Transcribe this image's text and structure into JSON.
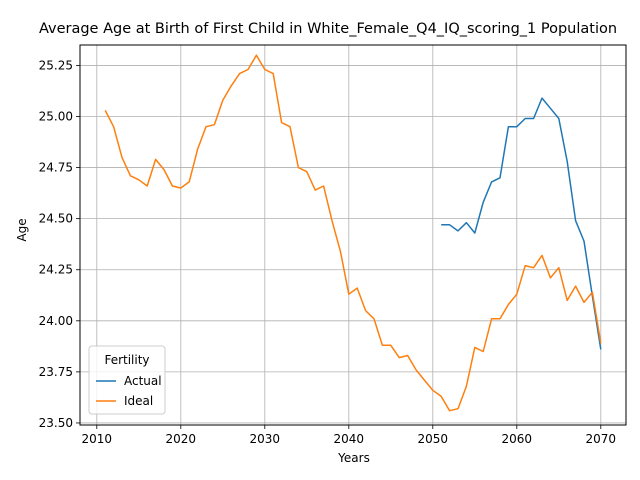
{
  "chart_data": {
    "type": "line",
    "title": "Average Age at Birth of First Child in White_Female_Q4_IQ_scoring_1 Population",
    "xlabel": "Years",
    "ylabel": "Age",
    "xlim": [
      2008,
      2073
    ],
    "ylim": [
      23.49,
      25.35
    ],
    "x_ticks": [
      2010,
      2020,
      2030,
      2040,
      2050,
      2060,
      2070
    ],
    "y_ticks": [
      23.5,
      23.75,
      24.0,
      24.25,
      24.5,
      24.75,
      25.0,
      25.25
    ],
    "y_tick_labels": [
      "23.50",
      "23.75",
      "24.00",
      "24.25",
      "24.50",
      "24.75",
      "25.00",
      "25.25"
    ],
    "grid": true,
    "legend": {
      "title": "Fertility",
      "placement": "lower-left"
    },
    "series": [
      {
        "name": "Actual",
        "color": "#1f77b4",
        "x": [
          2051,
          2052,
          2053,
          2054,
          2055,
          2056,
          2057,
          2058,
          2059,
          2060,
          2061,
          2062,
          2063,
          2064,
          2065,
          2066,
          2067,
          2068,
          2069,
          2070
        ],
        "y": [
          24.47,
          24.47,
          24.44,
          24.48,
          24.43,
          24.58,
          24.68,
          24.7,
          24.95,
          24.95,
          24.99,
          24.99,
          25.09,
          25.04,
          24.99,
          24.78,
          24.49,
          24.39,
          24.12,
          23.86
        ]
      },
      {
        "name": "Ideal",
        "color": "#ff7f0e",
        "x": [
          2011,
          2012,
          2013,
          2014,
          2015,
          2016,
          2017,
          2018,
          2019,
          2020,
          2021,
          2022,
          2023,
          2024,
          2025,
          2026,
          2027,
          2028,
          2029,
          2030,
          2031,
          2032,
          2033,
          2034,
          2035,
          2036,
          2037,
          2038,
          2039,
          2040,
          2041,
          2042,
          2043,
          2044,
          2045,
          2046,
          2047,
          2048,
          2049,
          2050,
          2051,
          2052,
          2053,
          2054,
          2055,
          2056,
          2057,
          2058,
          2059,
          2060,
          2061,
          2062,
          2063,
          2064,
          2065,
          2066,
          2067,
          2068,
          2069,
          2070
        ],
        "y": [
          25.03,
          24.95,
          24.8,
          24.71,
          24.69,
          24.66,
          24.79,
          24.74,
          24.66,
          24.65,
          24.68,
          24.84,
          24.95,
          24.96,
          25.08,
          25.15,
          25.21,
          25.23,
          25.3,
          25.23,
          25.21,
          24.97,
          24.95,
          24.75,
          24.73,
          24.64,
          24.66,
          24.49,
          24.34,
          24.13,
          24.16,
          24.05,
          24.01,
          23.88,
          23.88,
          23.82,
          23.83,
          23.76,
          23.71,
          23.66,
          23.63,
          23.56,
          23.57,
          23.68,
          23.87,
          23.85,
          24.01,
          24.01,
          24.08,
          24.13,
          24.27,
          24.26,
          24.32,
          24.21,
          24.26,
          24.1,
          24.17,
          24.09,
          24.14,
          23.89
        ]
      }
    ]
  }
}
